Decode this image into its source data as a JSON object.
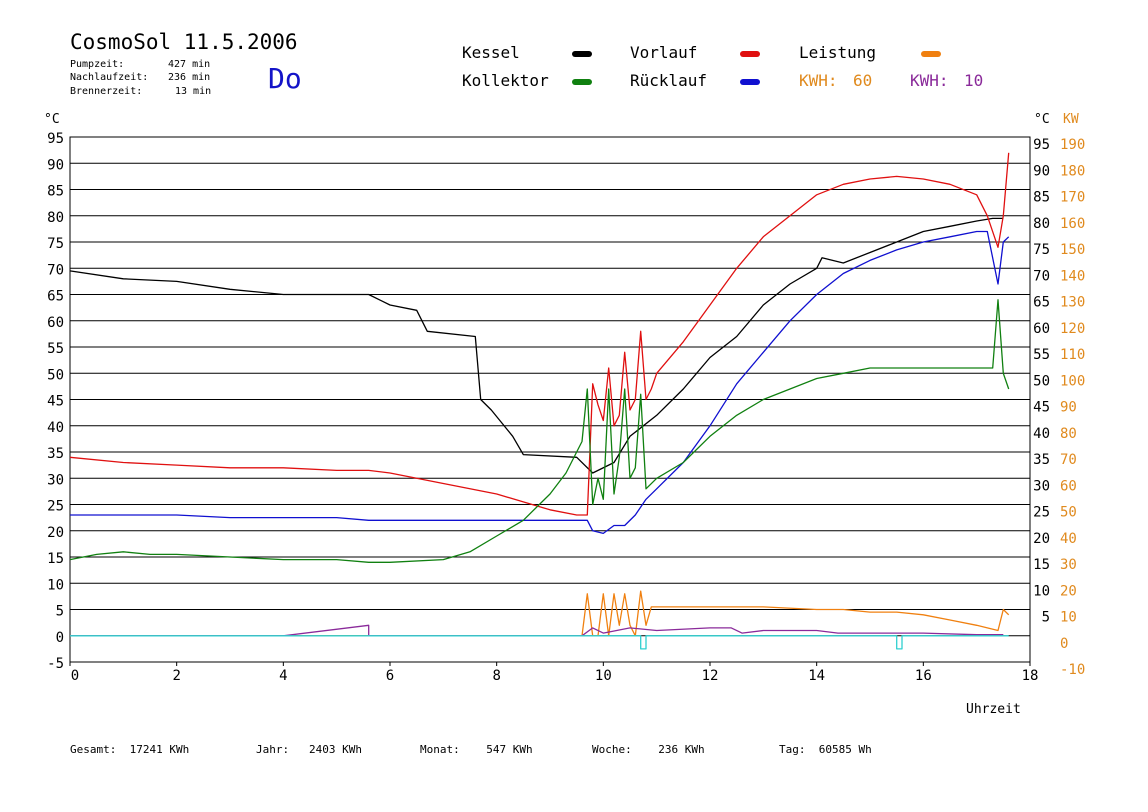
{
  "header": {
    "title": "CosmoSol 11.5.2006",
    "stats": [
      {
        "label": "Pumpzeit:",
        "value": "427 min"
      },
      {
        "label": "Nachlaufzeit:",
        "value": "236 min"
      },
      {
        "label": "Brennerzeit:",
        "value": "13 min"
      }
    ],
    "day": "Do"
  },
  "legend": {
    "kessel": {
      "label": "Kessel",
      "color": "#000000"
    },
    "vorlauf": {
      "label": "Vorlauf",
      "color": "#e01010"
    },
    "leistung": {
      "label": "Leistung",
      "color": "#f08010"
    },
    "kollektor": {
      "label": "Kollektor",
      "color": "#108010"
    },
    "ruecklauf": {
      "label": "Rücklauf",
      "color": "#1010d0"
    },
    "kwh1": {
      "label": "KWH:",
      "value": "60",
      "color": "#e08a1e"
    },
    "kwh2": {
      "label": "KWH:",
      "value": "10",
      "color": "#8a2a9a"
    }
  },
  "axes": {
    "left_unit": "°C",
    "right_unit_c": "°C",
    "right_unit_kw": "KW",
    "x_label": "Uhrzeit"
  },
  "footer": {
    "gesamt": "Gesamt:  17241 KWh",
    "jahr": "Jahr:   2403 KWh",
    "monat": "Monat:    547 KWh",
    "woche": "Woche:    236 KWh",
    "tag": "Tag:  60585 Wh"
  },
  "chart_data": {
    "type": "line",
    "title": "CosmoSol 11.5.2006",
    "xlabel": "Uhrzeit",
    "ylabel": "°C",
    "xlim": [
      0,
      18
    ],
    "ylim": [
      -5,
      95
    ],
    "y2lim": [
      -10,
      190
    ],
    "x_ticks": [
      0,
      2,
      4,
      6,
      8,
      10,
      12,
      14,
      16,
      18
    ],
    "y_ticks_left": [
      -5,
      0,
      5,
      10,
      15,
      20,
      25,
      30,
      35,
      40,
      45,
      50,
      55,
      60,
      65,
      70,
      75,
      80,
      85,
      90,
      95
    ],
    "y_ticks_right_c": [
      5,
      10,
      15,
      20,
      25,
      30,
      35,
      40,
      45,
      50,
      55,
      60,
      65,
      70,
      75,
      80,
      85,
      90,
      95
    ],
    "y_ticks_right_kw": [
      -10,
      0,
      10,
      20,
      30,
      40,
      50,
      60,
      70,
      80,
      90,
      100,
      110,
      120,
      130,
      140,
      150,
      160,
      170,
      180,
      190
    ],
    "grid": true,
    "series": [
      {
        "name": "Kessel",
        "color": "#000000",
        "x": [
          0,
          1,
          2,
          3,
          4,
          5,
          5.6,
          6,
          6.5,
          6.7,
          7.6,
          7.7,
          7.9,
          8.3,
          8.5,
          9.5,
          9.8,
          10.2,
          10.5,
          11,
          11.5,
          12,
          12.5,
          13,
          13.5,
          14,
          14.1,
          14.5,
          15,
          15.5,
          16,
          16.5,
          17,
          17.3,
          17.5
        ],
        "values": [
          69.5,
          68,
          67.5,
          66,
          65,
          65,
          65,
          63,
          62,
          58,
          57,
          45,
          43,
          38,
          34.5,
          34,
          31,
          33,
          38,
          42,
          47,
          53,
          57,
          63,
          67,
          70,
          72,
          71,
          73,
          75,
          77,
          78,
          79,
          79.5,
          79.5
        ]
      },
      {
        "name": "Vorlauf",
        "color": "#e01010",
        "x": [
          0,
          1,
          2,
          3,
          4,
          5,
          5.6,
          6,
          7,
          8,
          8.5,
          9,
          9.5,
          9.7,
          9.8,
          9.9,
          10.0,
          10.1,
          10.2,
          10.3,
          10.4,
          10.5,
          10.6,
          10.7,
          10.8,
          10.9,
          11.0,
          11.5,
          12,
          12.5,
          13,
          13.5,
          14,
          14.5,
          15,
          15.5,
          16,
          16.5,
          17,
          17.2,
          17.4,
          17.5,
          17.6
        ],
        "values": [
          34,
          33,
          32.5,
          32,
          32,
          31.5,
          31.5,
          31,
          29,
          27,
          25.5,
          24,
          23,
          23,
          48,
          44,
          41,
          51,
          40,
          42,
          54,
          43,
          45,
          58,
          45,
          47,
          50,
          56,
          63,
          70,
          76,
          80,
          84,
          86,
          87,
          87.5,
          87,
          86,
          84,
          80,
          74,
          80,
          92
        ]
      },
      {
        "name": "Rücklauf",
        "color": "#1010d0",
        "x": [
          0,
          1,
          2,
          3,
          4,
          5,
          5.6,
          6,
          7,
          8,
          9,
          9.7,
          9.8,
          10.0,
          10.2,
          10.4,
          10.6,
          10.8,
          11,
          11.5,
          12,
          12.5,
          13,
          13.5,
          14,
          14.5,
          15,
          15.5,
          16,
          16.5,
          17,
          17.2,
          17.4,
          17.5,
          17.6
        ],
        "values": [
          23,
          23,
          23,
          22.5,
          22.5,
          22.5,
          22,
          22,
          22,
          22,
          22,
          22,
          20,
          19.5,
          21,
          21,
          23,
          26,
          28,
          33,
          40,
          48,
          54,
          60,
          65,
          69,
          71.5,
          73.5,
          75,
          76,
          77,
          77,
          67,
          75,
          76
        ]
      },
      {
        "name": "Kollektor",
        "color": "#108010",
        "x": [
          0,
          0.5,
          1,
          1.5,
          2,
          3,
          4,
          5,
          5.6,
          6,
          7,
          7.5,
          8,
          8.5,
          9,
          9.3,
          9.6,
          9.7,
          9.8,
          9.9,
          10.0,
          10.1,
          10.2,
          10.3,
          10.4,
          10.5,
          10.6,
          10.7,
          10.8,
          11,
          11.5,
          12,
          12.5,
          13,
          13.5,
          14,
          14.5,
          15,
          15.5,
          16,
          16.5,
          17,
          17.3,
          17.4,
          17.5,
          17.6
        ],
        "values": [
          14.5,
          15.5,
          16,
          15.5,
          15.5,
          15,
          14.5,
          14.5,
          14,
          14,
          14.5,
          16,
          19,
          22,
          27,
          31,
          37,
          47,
          25,
          30,
          26,
          47,
          27,
          34,
          47,
          30,
          32,
          46,
          28,
          30,
          33,
          38,
          42,
          45,
          47,
          49,
          50,
          51,
          51,
          51,
          51,
          51,
          51,
          64,
          50,
          47
        ]
      },
      {
        "name": "Leistung",
        "color": "#f08010",
        "x": [
          0,
          9.6,
          9.7,
          9.8,
          9.9,
          10.0,
          10.1,
          10.2,
          10.3,
          10.4,
          10.5,
          10.6,
          10.7,
          10.8,
          10.9,
          11,
          12,
          13,
          14,
          14.5,
          15,
          15.5,
          16,
          16.5,
          17,
          17.4,
          17.5,
          17.6
        ],
        "values": [
          0,
          0,
          8,
          0,
          0,
          8,
          0,
          8,
          2,
          8,
          2,
          0,
          8.5,
          2,
          5.5,
          5.5,
          5.5,
          5.5,
          5,
          5,
          4.5,
          4.5,
          4,
          3,
          2,
          1,
          5,
          4
        ]
      },
      {
        "name": "Brenner",
        "color": "#8a2a9a",
        "x": [
          0,
          4,
          5.6,
          5.6,
          9.6,
          9.8,
          10,
          10.5,
          11,
          12,
          12.4,
          12.6,
          13,
          14,
          14.4,
          15,
          16,
          17,
          17.5
        ],
        "values": [
          0,
          0,
          2,
          0,
          0,
          1.5,
          0.5,
          1.5,
          1,
          1.5,
          1.5,
          0.5,
          1,
          1,
          0.5,
          0.5,
          0.5,
          0.2,
          0.2
        ]
      },
      {
        "name": "Pumpe",
        "color": "#30d0d0",
        "x": [
          0,
          10.7,
          10.7,
          10.8,
          10.8,
          15.5,
          15.5,
          15.6,
          15.6,
          17.6
        ],
        "values": [
          0,
          0,
          -2.5,
          -2.5,
          0,
          0,
          -2.5,
          -2.5,
          0,
          0
        ]
      }
    ]
  }
}
